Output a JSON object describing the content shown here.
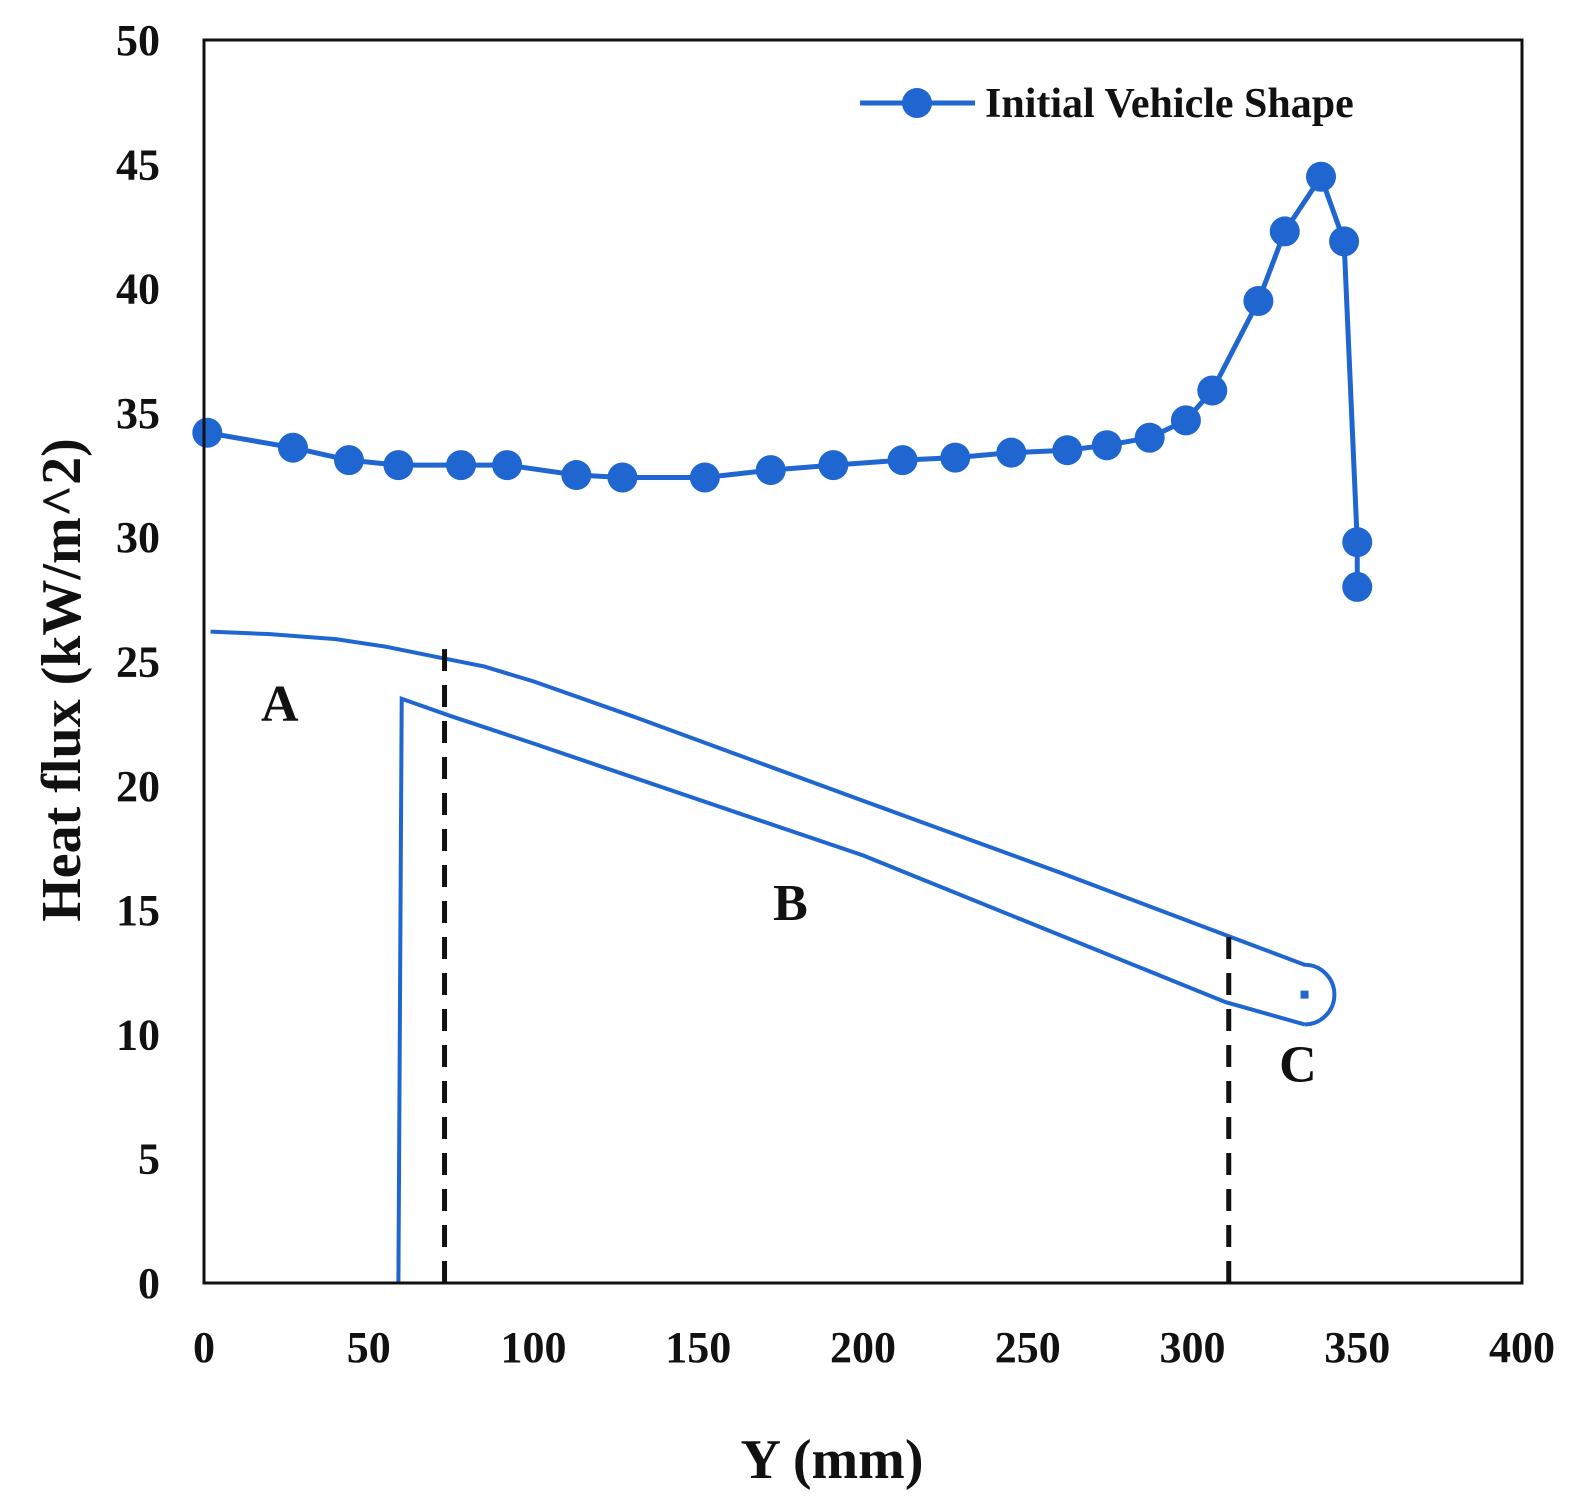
{
  "chart_data": {
    "type": "line",
    "title": "",
    "xlabel": "Y (mm)",
    "ylabel": "Heat flux (kW/m^2)",
    "xlim": [
      0,
      400
    ],
    "ylim": [
      0,
      50
    ],
    "x_ticks": [
      0,
      50,
      100,
      150,
      200,
      250,
      300,
      350,
      400
    ],
    "y_ticks": [
      0,
      5,
      10,
      15,
      20,
      25,
      30,
      35,
      40,
      45,
      50
    ],
    "grid": false,
    "legend_position": "top-right",
    "colors": {
      "series": "#1f66d1",
      "text": "#111111",
      "dashed": "#111111"
    },
    "series": [
      {
        "name": "Initial Vehicle Shape",
        "marker": "circle",
        "x": [
          1,
          27,
          44,
          59,
          78,
          92,
          113,
          127,
          152,
          172,
          191,
          212,
          228,
          245,
          262,
          274,
          287,
          298,
          306,
          320,
          328,
          339,
          346,
          350,
          350
        ],
        "y": [
          34.2,
          33.6,
          33.1,
          32.9,
          32.9,
          32.9,
          32.5,
          32.4,
          32.4,
          32.7,
          32.9,
          33.1,
          33.2,
          33.4,
          33.5,
          33.7,
          34.0,
          34.7,
          35.9,
          39.5,
          42.3,
          44.5,
          41.9,
          29.8,
          28.0
        ]
      }
    ],
    "vehicle_shape_overlay": {
      "upper_surface": {
        "x": [
          2,
          20,
          40,
          55,
          70,
          85,
          100,
          130,
          200,
          260,
          310,
          334
        ],
        "y": [
          26.2,
          26.1,
          25.9,
          25.6,
          25.2,
          24.8,
          24.2,
          22.8,
          19.4,
          16.5,
          14.0,
          12.8
        ]
      },
      "lower_surface": {
        "x": [
          59,
          60,
          75,
          100,
          200,
          310,
          334
        ],
        "y": [
          0,
          23.5,
          22.8,
          21.7,
          17.2,
          11.3,
          10.4
        ]
      },
      "nose_center": {
        "x": 334,
        "y": 11.6
      }
    },
    "annotations": [
      {
        "text": "A",
        "x": 23,
        "y": 22.6
      },
      {
        "text": "B",
        "x": 178,
        "y": 14.6
      },
      {
        "text": "C",
        "x": 332,
        "y": 8.1
      }
    ],
    "dashed_lines": [
      {
        "x": 73,
        "y_from": 0,
        "y_to": 25.5
      },
      {
        "x": 311,
        "y_from": 0,
        "y_to": 14.2
      }
    ]
  }
}
